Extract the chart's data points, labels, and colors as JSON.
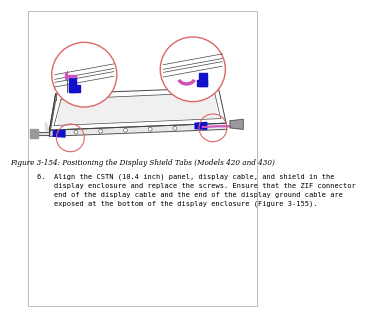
{
  "background_color": "#ffffff",
  "border_color": "#bbbbbb",
  "figure_caption": "Figure 3-154: Positioning the Display Shield Tabs (Models 420 and 430)",
  "caption_fontsize": 5.2,
  "body_text": "6.  Align the CSTN (10.4 inch) panel, display cable, and shield in the\n    display enclosure and replace the screws. Ensure that the ZIF connector\n    end of the display cable and the end of the display ground cable are\n    exposed at the bottom of the display enclosure (Figure 3-155).",
  "body_fontsize": 5.0,
  "circle_color": "#dd6666",
  "blue_color": "#1111cc",
  "pink_color": "#cc55bb",
  "dark_color": "#444444",
  "mid_gray": "#999999",
  "light_gray": "#dddddd",
  "panel_dark": "#555555"
}
